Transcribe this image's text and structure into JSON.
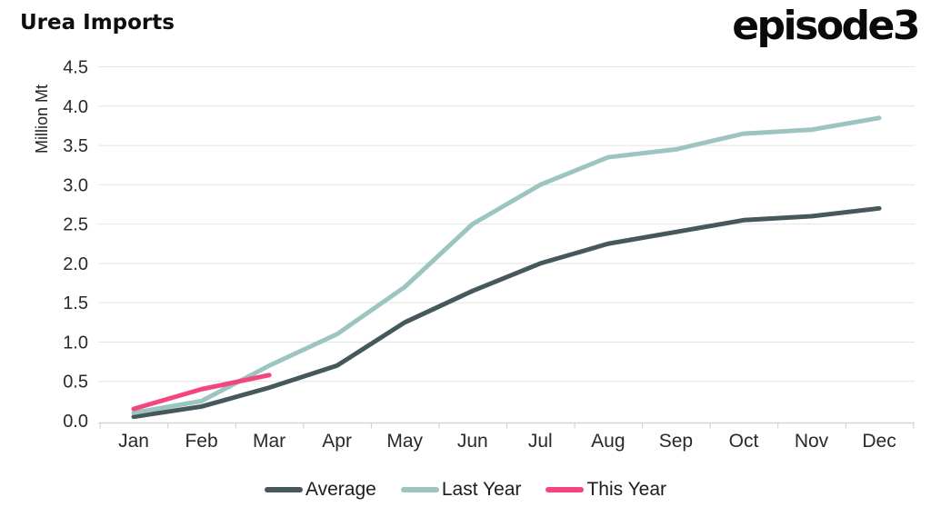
{
  "header": {
    "title": "Urea Imports",
    "logo_text": "episode3"
  },
  "colors": {
    "background": "#ffffff",
    "average_line": "#47585C",
    "last_year_line": "#9CC5C1",
    "this_year_line": "#F5457F",
    "gridline": "#e4e4e4",
    "axis_text": "#2a2a2a"
  },
  "chart_data": {
    "type": "line",
    "title": "Urea Imports",
    "xlabel": "",
    "ylabel": "Million Mt",
    "ylim": [
      0,
      4.5
    ],
    "ytick_step": 0.5,
    "ytick_labels": [
      "0.0",
      "0.5",
      "1.0",
      "1.5",
      "2.0",
      "2.5",
      "3.0",
      "3.5",
      "4.0",
      "4.5"
    ],
    "grid": "horizontal",
    "legend_position": "bottom",
    "categories": [
      "Jan",
      "Feb",
      "Mar",
      "Apr",
      "May",
      "Jun",
      "Jul",
      "Aug",
      "Sep",
      "Oct",
      "Nov",
      "Dec"
    ],
    "series": [
      {
        "name": "Average",
        "color": "#47585C",
        "values": [
          0.05,
          0.18,
          0.42,
          0.7,
          1.25,
          1.65,
          2.0,
          2.25,
          2.4,
          2.55,
          2.6,
          2.7
        ]
      },
      {
        "name": "Last Year",
        "color": "#9CC5C1",
        "values": [
          0.1,
          0.25,
          0.7,
          1.1,
          1.7,
          2.5,
          3.0,
          3.35,
          3.45,
          3.65,
          3.7,
          3.85
        ]
      },
      {
        "name": "This Year",
        "color": "#F5457F",
        "values": [
          0.15,
          0.4,
          0.58
        ]
      }
    ]
  }
}
